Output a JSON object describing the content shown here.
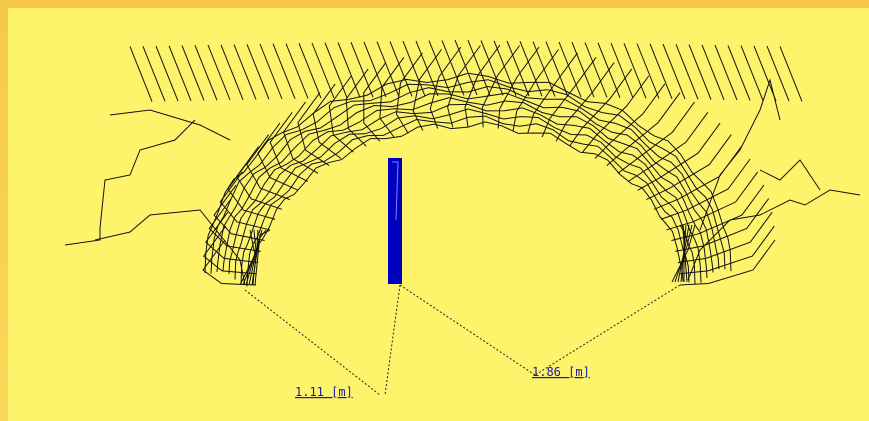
{
  "measurements": [
    "1.11 [m]",
    "1.86 [m]"
  ]
}
